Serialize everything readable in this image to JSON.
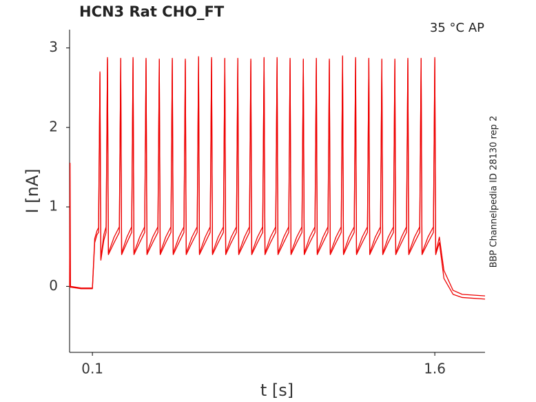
{
  "chart_data": {
    "type": "line",
    "title": "HCN3  Rat  CHO_FT",
    "annotations": [
      "35 °C  AP",
      "BBP Channelpedia ID 28130 rep 2"
    ],
    "x_label": "t [s]",
    "y_label": "I [nA]",
    "xlim": [
      0,
      1.82
    ],
    "ylim": [
      -0.83,
      3.23
    ],
    "xticks": [
      0.1,
      1.6
    ],
    "yticks": [
      0,
      1,
      2,
      3
    ],
    "grid": false,
    "x": [
      0,
      0.002,
      0.004,
      0.05,
      0.1,
      0.11,
      0.12,
      0.127,
      0.133,
      0.137,
      0.15,
      0.16,
      0.166,
      0.17,
      0.195,
      0.218,
      0.224,
      0.228,
      0.251,
      0.272,
      0.278,
      0.282,
      0.307,
      0.329,
      0.335,
      0.339,
      0.364,
      0.387,
      0.393,
      0.397,
      0.421,
      0.444,
      0.45,
      0.454,
      0.479,
      0.501,
      0.507,
      0.511,
      0.536,
      0.559,
      0.565,
      0.569,
      0.594,
      0.616,
      0.622,
      0.626,
      0.651,
      0.674,
      0.68,
      0.684,
      0.708,
      0.731,
      0.737,
      0.741,
      0.766,
      0.788,
      0.794,
      0.798,
      0.823,
      0.846,
      0.852,
      0.856,
      0.88,
      0.903,
      0.909,
      0.913,
      0.938,
      0.96,
      0.966,
      0.97,
      0.995,
      1.018,
      1.024,
      1.028,
      1.052,
      1.075,
      1.081,
      1.085,
      1.11,
      1.132,
      1.138,
      1.142,
      1.167,
      1.19,
      1.196,
      1.2,
      1.224,
      1.247,
      1.253,
      1.257,
      1.282,
      1.305,
      1.311,
      1.315,
      1.339,
      1.362,
      1.368,
      1.372,
      1.396,
      1.419,
      1.425,
      1.429,
      1.454,
      1.476,
      1.482,
      1.486,
      1.511,
      1.534,
      1.54,
      1.544,
      1.57,
      1.594,
      1.6,
      1.604,
      1.62,
      1.64,
      1.68,
      1.72,
      1.82
    ],
    "series": [
      {
        "color": "#ee0000",
        "values": [
          0,
          1.55,
          0,
          -0.02,
          -0.02,
          0.6,
          0.7,
          0.74,
          2.7,
          0.35,
          0.65,
          0.75,
          2.88,
          0.42,
          0.62,
          0.75,
          2.87,
          0.42,
          0.62,
          0.75,
          2.88,
          0.42,
          0.62,
          0.75,
          2.87,
          0.42,
          0.62,
          0.75,
          2.86,
          0.42,
          0.62,
          0.75,
          2.87,
          0.42,
          0.62,
          0.75,
          2.86,
          0.42,
          0.62,
          0.75,
          2.89,
          0.42,
          0.62,
          0.75,
          2.88,
          0.42,
          0.62,
          0.75,
          2.87,
          0.42,
          0.62,
          0.75,
          2.87,
          0.42,
          0.62,
          0.75,
          2.86,
          0.42,
          0.62,
          0.75,
          2.88,
          0.42,
          0.62,
          0.75,
          2.88,
          0.42,
          0.62,
          0.75,
          2.87,
          0.42,
          0.62,
          0.75,
          2.86,
          0.42,
          0.62,
          0.75,
          2.87,
          0.42,
          0.62,
          0.75,
          2.86,
          0.42,
          0.62,
          0.75,
          2.9,
          0.42,
          0.62,
          0.75,
          2.88,
          0.42,
          0.62,
          0.75,
          2.87,
          0.42,
          0.62,
          0.75,
          2.86,
          0.42,
          0.62,
          0.75,
          2.86,
          0.42,
          0.62,
          0.75,
          2.87,
          0.42,
          0.62,
          0.75,
          2.87,
          0.42,
          0.62,
          0.75,
          2.88,
          0.42,
          0.62,
          0.2,
          -0.05,
          -0.1,
          -0.12
        ]
      },
      {
        "color": "#ee0000",
        "values": [
          0,
          -0.01,
          -0.01,
          -0.03,
          -0.03,
          0.55,
          0.65,
          0.68,
          2.68,
          0.33,
          0.58,
          0.68,
          2.86,
          0.4,
          0.55,
          0.68,
          2.85,
          0.4,
          0.55,
          0.68,
          2.86,
          0.4,
          0.55,
          0.68,
          2.85,
          0.4,
          0.55,
          0.68,
          2.84,
          0.4,
          0.55,
          0.68,
          2.85,
          0.4,
          0.55,
          0.68,
          2.84,
          0.4,
          0.55,
          0.68,
          2.87,
          0.4,
          0.55,
          0.68,
          2.86,
          0.4,
          0.55,
          0.68,
          2.85,
          0.4,
          0.55,
          0.68,
          2.85,
          0.4,
          0.55,
          0.68,
          2.84,
          0.4,
          0.55,
          0.68,
          2.86,
          0.4,
          0.55,
          0.68,
          2.86,
          0.4,
          0.55,
          0.68,
          2.85,
          0.4,
          0.55,
          0.68,
          2.84,
          0.4,
          0.55,
          0.68,
          2.85,
          0.4,
          0.55,
          0.68,
          2.84,
          0.4,
          0.55,
          0.68,
          2.88,
          0.4,
          0.55,
          0.68,
          2.86,
          0.4,
          0.55,
          0.68,
          2.85,
          0.4,
          0.55,
          0.68,
          2.84,
          0.4,
          0.55,
          0.68,
          2.84,
          0.4,
          0.55,
          0.68,
          2.85,
          0.4,
          0.55,
          0.68,
          2.85,
          0.4,
          0.55,
          0.68,
          2.86,
          0.4,
          0.55,
          0.1,
          -0.1,
          -0.14,
          -0.16
        ]
      }
    ]
  }
}
